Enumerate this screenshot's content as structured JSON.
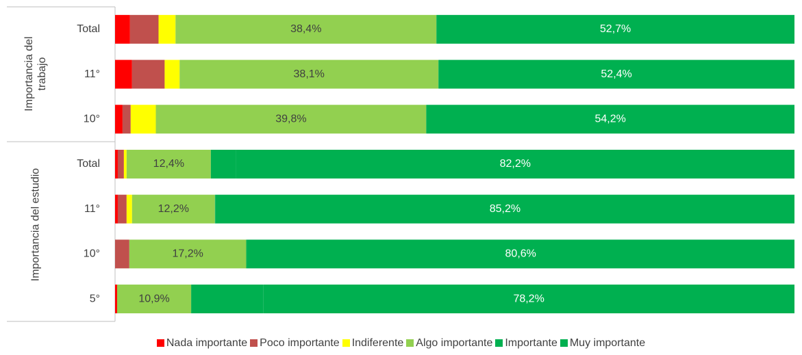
{
  "chart_data": {
    "type": "stacked-bar-horizontal",
    "xlim": [
      0,
      100
    ],
    "groups": [
      {
        "label": "Importancia del trabajo",
        "categories": [
          "Total",
          "11°",
          "10°"
        ]
      },
      {
        "label": "Importancia del estudio",
        "categories": [
          "Total",
          "11°",
          "10°",
          "5°"
        ]
      }
    ],
    "series": [
      {
        "name": "Nada importante",
        "color": "#ff0000",
        "values": [
          2.2,
          2.5,
          1.1,
          0.4,
          0.4,
          0,
          0.3
        ]
      },
      {
        "name": "Poco importante",
        "color": "#c0504d",
        "values": [
          4.2,
          4.8,
          1.2,
          0.9,
          1.3,
          2.1,
          0
        ]
      },
      {
        "name": "Indiferente",
        "color": "#ffff00",
        "values": [
          2.5,
          2.2,
          3.7,
          0.4,
          0.8,
          0,
          0
        ]
      },
      {
        "name": "Algo importante",
        "color": "#92d050",
        "label_color": "#404040",
        "values": [
          38.4,
          38.1,
          39.8,
          12.4,
          12.2,
          17.2,
          10.9
        ],
        "value_labels": [
          "38,4%",
          "38,1%",
          "39,8%",
          "12,4%",
          "12,2%",
          "17,2%",
          "10,9%"
        ]
      },
      {
        "name": "Importante",
        "color": "#00b050",
        "values": [
          0,
          0,
          0,
          3.7,
          0.1,
          0.1,
          10.6
        ]
      },
      {
        "name": "Muy importante",
        "color": "#00b050",
        "label_color": "#ffffff",
        "values": [
          52.7,
          52.4,
          54.2,
          82.2,
          85.2,
          80.6,
          78.2
        ],
        "value_labels": [
          "52,7%",
          "52,4%",
          "54,2%",
          "82,2%",
          "85,2%",
          "80,6%",
          "78,2%"
        ]
      }
    ]
  }
}
